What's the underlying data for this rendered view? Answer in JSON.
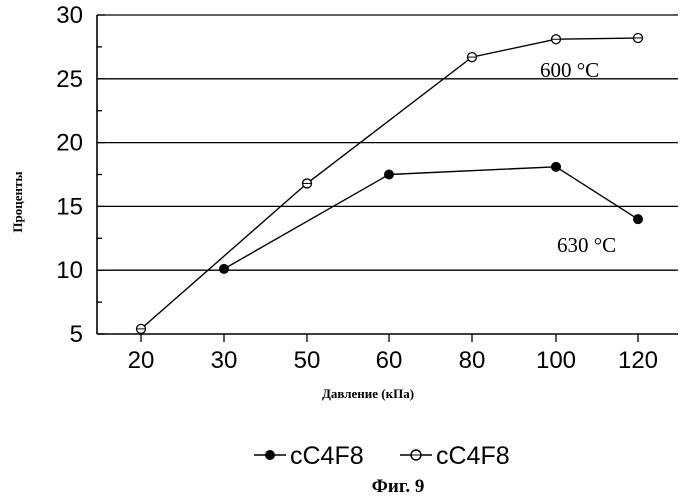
{
  "chart_data": {
    "type": "line",
    "xlabel": "Давление (кПа)",
    "ylabel": "Проценты",
    "ylim": [
      5,
      30
    ],
    "xticks": [
      20,
      30,
      50,
      60,
      80,
      100,
      120
    ],
    "yticks": [
      5,
      10,
      15,
      20,
      25,
      30
    ],
    "grid": "horizontal",
    "series": [
      {
        "name": "cC4F8",
        "marker": "filled-circle",
        "x": [
          30,
          60,
          100,
          120
        ],
        "y": [
          10.1,
          17.5,
          18.1,
          14.0
        ],
        "annotation": "630 °C"
      },
      {
        "name": "cC4F8",
        "marker": "open-circle",
        "x": [
          20,
          50,
          80,
          100,
          120
        ],
        "y": [
          5.4,
          16.8,
          26.7,
          28.1,
          28.2
        ],
        "annotation": "600 °C"
      }
    ],
    "legend": "bottom-center",
    "caption": "Фиг. 9"
  }
}
